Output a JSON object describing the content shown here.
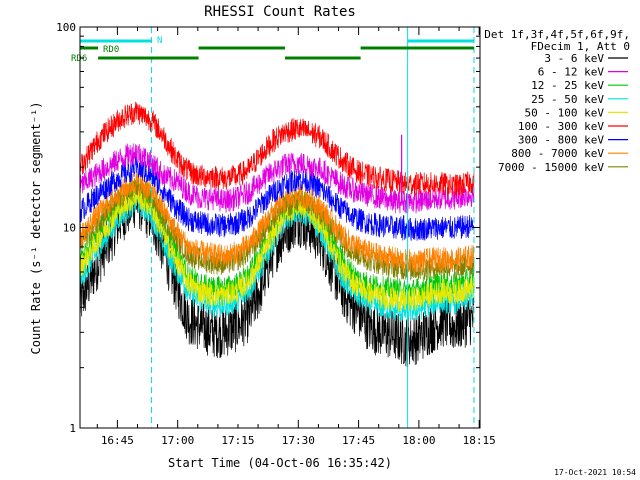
{
  "chart_data": {
    "type": "line",
    "title": "RHESSI Count Rates",
    "xlabel": "Start Time (04-Oct-06 16:35:42)",
    "ylabel": "Count Rate (s⁻¹ detector segment⁻¹)",
    "y_scale": "log",
    "ylim": [
      1,
      100
    ],
    "xlim_minutes": [
      0,
      98
    ],
    "x_ticks": [
      {
        "t": 9.3,
        "label": "16:45"
      },
      {
        "t": 24.3,
        "label": "17:00"
      },
      {
        "t": 39.3,
        "label": "17:15"
      },
      {
        "t": 54.3,
        "label": "17:30"
      },
      {
        "t": 69.3,
        "label": "17:45"
      },
      {
        "t": 84.3,
        "label": "18:00"
      },
      {
        "t": 99.3,
        "label": "18:15"
      }
    ],
    "y_ticks": [
      {
        "v": 1,
        "label": "1"
      },
      {
        "v": 10,
        "label": "10"
      },
      {
        "v": 100,
        "label": "100"
      }
    ],
    "x_note": "x values are minutes after the start time 16:35:42; series values are approximate counts per second per detector segment",
    "legend_header": [
      "Det 1f,3f,4f,5f,6f,9f,",
      "FDecim 1, Att 0"
    ],
    "legend_position": "right",
    "series": [
      {
        "name": "3 - 6 keV",
        "color": "#000000",
        "x": [
          0,
          5,
          10,
          14,
          18,
          21,
          24,
          27,
          30,
          33,
          36,
          39,
          42,
          45,
          48,
          51,
          54,
          57,
          60,
          63,
          66,
          69,
          72,
          75,
          78,
          81,
          84,
          87,
          90,
          93,
          96,
          98
        ],
        "values": [
          4.2,
          7,
          11,
          13.5,
          11,
          7.5,
          5,
          3.5,
          3.2,
          3.0,
          3.0,
          3.2,
          3.6,
          5,
          7.5,
          9.5,
          11,
          10,
          8.5,
          6,
          4.5,
          3.8,
          3.2,
          3.0,
          2.9,
          2.7,
          2.8,
          3.1,
          3.4,
          3.2,
          3.4,
          3.5
        ]
      },
      {
        "name": "6 - 12 keV",
        "color": "#e000e0",
        "x": [
          0,
          5,
          10,
          14,
          18,
          21,
          24,
          27,
          30,
          33,
          36,
          39,
          42,
          45,
          48,
          51,
          54,
          57,
          60,
          63,
          66,
          69,
          72,
          75,
          78,
          81,
          84,
          87,
          90,
          93,
          96,
          98
        ],
        "values": [
          16,
          19,
          22,
          24,
          21,
          18,
          17,
          15,
          14,
          14,
          13.5,
          14,
          15,
          17,
          19,
          20.5,
          21,
          20.5,
          19.5,
          17.5,
          16,
          15,
          14.5,
          14,
          13.5,
          13.5,
          13.5,
          13.8,
          14,
          14,
          14.5,
          14.5
        ]
      },
      {
        "name": "12 - 25 keV",
        "color": "#00c800",
        "x": [
          0,
          5,
          10,
          14,
          18,
          21,
          24,
          27,
          30,
          33,
          36,
          39,
          42,
          45,
          48,
          51,
          54,
          57,
          60,
          63,
          66,
          69,
          72,
          75,
          78,
          81,
          84,
          87,
          90,
          93,
          96,
          98
        ],
        "values": [
          7,
          10,
          13.5,
          15.5,
          13.5,
          10,
          7.5,
          5.8,
          5.2,
          5.0,
          5.0,
          5.2,
          5.8,
          7.5,
          10,
          12.5,
          13.5,
          13,
          11,
          8.5,
          6.5,
          5.6,
          5.2,
          5.0,
          4.9,
          4.8,
          4.9,
          5.1,
          5.3,
          5.2,
          5.4,
          5.5
        ]
      },
      {
        "name": "25 - 50 keV",
        "color": "#00e0e0",
        "x": [
          0,
          5,
          10,
          14,
          18,
          21,
          24,
          27,
          30,
          33,
          36,
          39,
          42,
          45,
          48,
          51,
          54,
          57,
          60,
          63,
          66,
          69,
          72,
          75,
          78,
          81,
          84,
          87,
          90,
          93,
          96,
          98
        ],
        "values": [
          5.5,
          8,
          11.5,
          13.5,
          11.5,
          8,
          6.2,
          4.8,
          4.3,
          4.1,
          4.1,
          4.3,
          4.9,
          6.3,
          8.5,
          11,
          12,
          11.5,
          9.5,
          7,
          5.3,
          4.6,
          4.2,
          4.0,
          3.9,
          3.8,
          3.9,
          4.1,
          4.3,
          4.2,
          4.4,
          4.5
        ]
      },
      {
        "name": "50 - 100 keV",
        "color": "#e8e800",
        "x": [
          0,
          5,
          10,
          14,
          18,
          21,
          24,
          27,
          30,
          33,
          36,
          39,
          42,
          45,
          48,
          51,
          54,
          57,
          60,
          63,
          66,
          69,
          72,
          75,
          78,
          81,
          84,
          87,
          90,
          93,
          96,
          98
        ],
        "values": [
          6.3,
          9,
          12.5,
          14.5,
          12.5,
          9,
          6.8,
          5.3,
          4.8,
          4.6,
          4.6,
          4.8,
          5.4,
          6.9,
          9.3,
          11.8,
          12.8,
          12.3,
          10.3,
          7.7,
          5.9,
          5.1,
          4.7,
          4.5,
          4.4,
          4.3,
          4.4,
          4.6,
          4.8,
          4.7,
          4.9,
          5.0
        ]
      },
      {
        "name": "100 - 300 keV",
        "color": "#ff0000",
        "x": [
          0,
          5,
          10,
          14,
          18,
          21,
          24,
          27,
          30,
          33,
          36,
          39,
          42,
          45,
          48,
          51,
          54,
          57,
          60,
          63,
          66,
          69,
          72,
          75,
          78,
          81,
          84,
          87,
          90,
          93,
          96,
          98
        ],
        "values": [
          20,
          28,
          35,
          38,
          34,
          28,
          22,
          19,
          18,
          18,
          17.5,
          18,
          19.5,
          23,
          27,
          30,
          31,
          30,
          28,
          24,
          21,
          19,
          18,
          17.5,
          17,
          16.5,
          16.5,
          16.5,
          16.5,
          16,
          16.5,
          17
        ]
      },
      {
        "name": "300 - 800 keV",
        "color": "#0000ff",
        "x": [
          0,
          5,
          10,
          14,
          18,
          21,
          24,
          27,
          30,
          33,
          36,
          39,
          42,
          45,
          48,
          51,
          54,
          57,
          60,
          63,
          66,
          69,
          72,
          75,
          78,
          81,
          84,
          87,
          90,
          93,
          96,
          98
        ],
        "values": [
          12,
          15,
          18,
          20,
          18,
          15,
          12.5,
          11,
          10.5,
          10.3,
          10.2,
          10.5,
          11.2,
          13,
          15,
          16.5,
          17.5,
          17,
          15.5,
          13.5,
          12,
          11,
          10.5,
          10.2,
          10,
          9.8,
          9.8,
          9.9,
          10,
          9.9,
          10.1,
          10.2
        ]
      },
      {
        "name": "800 - 7000 keV",
        "color": "#ff8000",
        "x": [
          0,
          5,
          10,
          14,
          18,
          21,
          24,
          27,
          30,
          33,
          36,
          39,
          42,
          45,
          48,
          51,
          54,
          57,
          60,
          63,
          66,
          69,
          72,
          75,
          78,
          81,
          84,
          87,
          90,
          93,
          96,
          98
        ],
        "values": [
          9,
          12,
          15,
          17,
          15,
          12,
          9.5,
          8,
          7.5,
          7.3,
          7.2,
          7.5,
          8.2,
          9.8,
          12,
          13.5,
          14.5,
          14,
          12.5,
          10.5,
          8.8,
          8,
          7.5,
          7.2,
          7,
          6.8,
          6.8,
          6.9,
          7,
          6.9,
          7.1,
          7.2
        ]
      },
      {
        "name": "7000 - 15000 keV",
        "color": "#808000",
        "x": [
          0,
          5,
          10,
          14,
          18,
          21,
          24,
          27,
          30,
          33,
          36,
          39,
          42,
          45,
          48,
          51,
          54,
          57,
          60,
          63,
          66,
          69,
          72,
          75,
          78,
          81,
          84,
          87,
          90,
          93,
          96,
          98
        ],
        "values": [
          8.3,
          11,
          14,
          16,
          14,
          11,
          8.8,
          7.4,
          6.9,
          6.7,
          6.6,
          6.9,
          7.6,
          9.1,
          11.2,
          12.7,
          13.6,
          13.1,
          11.7,
          9.8,
          8.2,
          7.4,
          6.9,
          6.6,
          6.4,
          6.2,
          6.2,
          6.3,
          6.4,
          6.3,
          6.5,
          6.6
        ]
      }
    ],
    "spikes": [
      {
        "series": "6 - 12 keV",
        "t": 80.0,
        "value": 29
      },
      {
        "series": "300 - 800 keV",
        "t": 80.5,
        "value": 11.5
      }
    ],
    "state_bars": [
      {
        "label": "N",
        "color": "#00e0e0",
        "level": "top",
        "segments": [
          [
            0,
            17.8
          ],
          [
            81.5,
            98
          ]
        ]
      },
      {
        "label": "RD0",
        "color": "#008000",
        "level": "upper",
        "segments": [
          [
            0,
            4.5
          ],
          [
            29.5,
            51
          ],
          [
            69.8,
            98
          ]
        ]
      },
      {
        "label": "RD6",
        "color": "#008000",
        "level": "lower",
        "segments": [
          [
            4.5,
            29.5
          ],
          [
            51,
            69.8
          ]
        ]
      }
    ],
    "vertical_lines": [
      {
        "t": 17.8,
        "style": "dashed",
        "color": "#00e0e0"
      },
      {
        "t": 81.5,
        "style": "solid",
        "color": "#00e0e0"
      },
      {
        "t": 98.0,
        "style": "dashed",
        "color": "#00e0e0"
      }
    ],
    "footer_date": "17-Oct-2021 10:54"
  }
}
